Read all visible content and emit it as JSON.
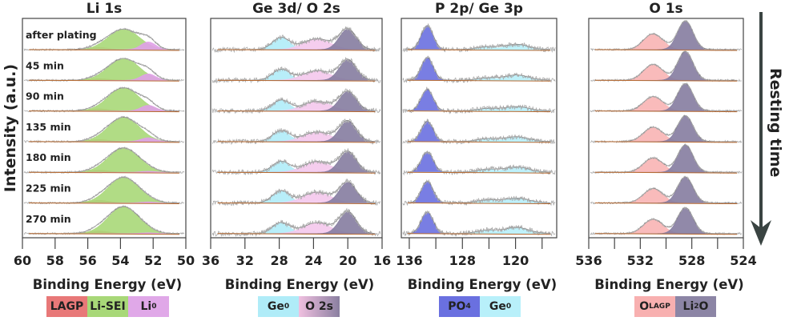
{
  "y_label": "Intensity (a.u.)",
  "arrow_label": "Resting time",
  "row_labels": [
    "after plating",
    "45 min",
    "90 min",
    "135 min",
    "180 min",
    "225 min",
    "270 min"
  ],
  "chart_data": [
    {
      "type": "area",
      "title": "Li 1s",
      "xlabel": "Binding Energy (eV)",
      "xlim": [
        60,
        50
      ],
      "ticks": [
        60,
        58,
        56,
        54,
        52,
        50
      ],
      "components": [
        {
          "name": "LAGP",
          "color": "#e87878",
          "center": 55.3,
          "sigma": 0.6,
          "amplitudes": [
            0.08,
            0.06,
            0.08,
            0.08,
            0.08,
            0.1,
            0.1
          ]
        },
        {
          "name": "Li-SEI",
          "color": "#a8d878",
          "center": 53.8,
          "sigma": 0.95,
          "amplitudes": [
            0.8,
            0.85,
            0.9,
            0.95,
            0.95,
            1.0,
            1.05
          ]
        },
        {
          "name": "Li0",
          "color": "#e0a0e8",
          "center": 52.3,
          "sigma": 0.45,
          "amplitudes": [
            0.3,
            0.25,
            0.22,
            0.15,
            0.04,
            0.04,
            0.03
          ]
        }
      ],
      "legend": [
        {
          "text": "LAGP",
          "color": "#e87878"
        },
        {
          "text": "Li-SEI",
          "color": "#a8d878"
        },
        {
          "text": "Li",
          "sup": "0",
          "color": "#e0a8e8"
        }
      ]
    },
    {
      "type": "area",
      "title": "Ge 3d/ O 2s",
      "xlabel": "Binding Energy (eV)",
      "xlim": [
        36,
        16
      ],
      "ticks": [
        36,
        32,
        28,
        24,
        20,
        16
      ],
      "components": [
        {
          "name": "Ge0",
          "color": "#b0ecf8",
          "center": 27.8,
          "sigma": 1.0,
          "amplitudes": [
            0.5,
            0.45,
            0.45,
            0.45,
            0.45,
            0.5,
            0.45
          ]
        },
        {
          "name": "O 2s",
          "color": "#f4c8ec",
          "center": 23.6,
          "sigma": 1.6,
          "amplitudes": [
            0.45,
            0.4,
            0.4,
            0.4,
            0.45,
            0.45,
            0.45
          ]
        },
        {
          "name": "O 2s (Li2O)",
          "color": "#857ca0",
          "center": 20.0,
          "sigma": 1.0,
          "amplitudes": [
            0.85,
            0.85,
            0.8,
            0.85,
            0.85,
            0.85,
            0.9
          ]
        }
      ],
      "legend": [
        {
          "text": "Ge",
          "sup": "0",
          "color": "#b0ecf8"
        },
        {
          "text": "O 2s",
          "color": "#f0c0e0",
          "color2": "#8a7fa0"
        }
      ]
    },
    {
      "type": "area",
      "title": "P 2p/ Ge 3p",
      "xlabel": "Binding Energy (eV)",
      "xlim": [
        137.2,
        113.8
      ],
      "ticks": [
        136,
        132,
        128,
        124,
        120,
        116
      ],
      "tick_labels": [
        "136",
        "",
        "128",
        "",
        "120",
        ""
      ],
      "components": [
        {
          "name": "PO4",
          "color": "#6a70e0",
          "center": 133.3,
          "sigma": 0.9,
          "amplitudes": [
            1.0,
            0.95,
            0.9,
            0.85,
            0.85,
            0.9,
            0.9
          ]
        },
        {
          "name": "Ge0",
          "color": "#b8f0fa",
          "center": 119.8,
          "sigma": 1.8,
          "amplitudes": [
            0.22,
            0.22,
            0.18,
            0.2,
            0.22,
            0.2,
            0.25
          ]
        },
        {
          "name": "Ge0",
          "color": "#b8f0fa",
          "center": 124.2,
          "sigma": 1.6,
          "amplitudes": [
            0.12,
            0.1,
            0.1,
            0.12,
            0.12,
            0.12,
            0.14
          ]
        }
      ],
      "legend": [
        {
          "text": "PO",
          "sub": "4",
          "color": "#6a70e0"
        },
        {
          "text": "Ge",
          "sup": "0",
          "color": "#b8f0fa"
        }
      ]
    },
    {
      "type": "area",
      "title": "O 1s",
      "xlabel": "Binding Energy (eV)",
      "xlim": [
        536,
        524
      ],
      "ticks": [
        536,
        534,
        532,
        530,
        528,
        526,
        524
      ],
      "tick_labels": [
        "536",
        "",
        "532",
        "",
        "528",
        "",
        "524"
      ],
      "components": [
        {
          "name": "OLAGP",
          "color": "#f8b4b4",
          "center": 531.0,
          "sigma": 0.75,
          "amplitudes": [
            0.55,
            0.55,
            0.5,
            0.5,
            0.5,
            0.5,
            0.5
          ]
        },
        {
          "name": "Li2O",
          "color": "#857ca0",
          "center": 528.5,
          "sigma": 0.6,
          "amplitudes": [
            1.0,
            1.0,
            0.95,
            0.9,
            0.95,
            0.9,
            0.9
          ]
        }
      ],
      "legend": [
        {
          "text": "O",
          "sub": "LAGP",
          "color": "#f8b0b0"
        },
        {
          "text": "Li",
          "sub": "2",
          "text2": "O",
          "color": "#8c85a5"
        }
      ]
    }
  ]
}
